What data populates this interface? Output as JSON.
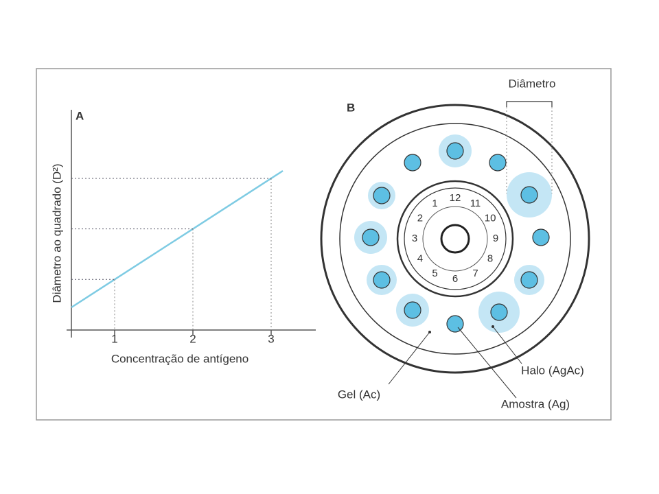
{
  "panel_a": {
    "label": "A",
    "y_axis_label": "Diâmetro ao quadrado (D²)",
    "x_axis_label": "Concentração de antígeno",
    "x_ticks": [
      1,
      2,
      3
    ]
  },
  "panel_b": {
    "label": "B",
    "diameter_label": "Diâmetro",
    "well_numbers": [
      1,
      2,
      3,
      4,
      5,
      6,
      7,
      8,
      9,
      10,
      11,
      12
    ],
    "labels": {
      "gel": "Gel (Ac)",
      "sample": "Amostra (Ag)",
      "halo": "Halo (AgAc)"
    }
  }
}
